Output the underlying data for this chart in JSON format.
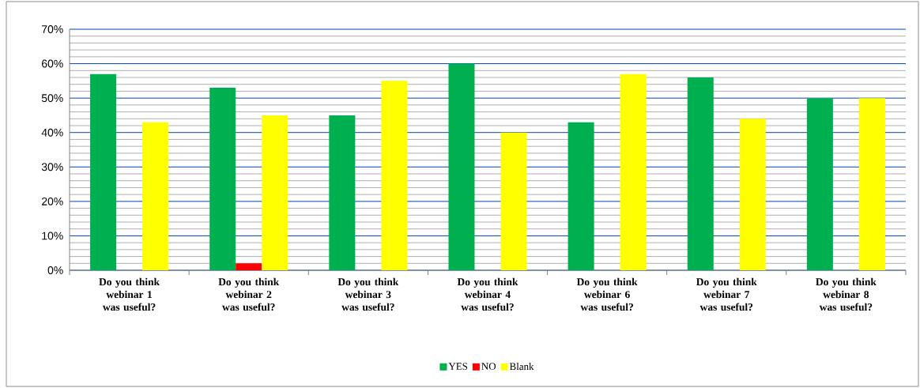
{
  "chart_data": {
    "type": "bar",
    "categories": [
      "Do you think webinar 1 was useful?",
      "Do you think webinar 2 was useful?",
      "Do you think webinar 3 was useful?",
      "Do you think webinar 4 was useful?",
      "Do you think webinar 6 was useful?",
      "Do you think webinar 7 was useful?",
      "Do you think webinar 8 was useful?"
    ],
    "series": [
      {
        "name": "YES",
        "color": "#00b050",
        "values": [
          57,
          53,
          45,
          60,
          43,
          56,
          50
        ]
      },
      {
        "name": "NO",
        "color": "#ff0000",
        "values": [
          0,
          2,
          0,
          0,
          0,
          0,
          0
        ]
      },
      {
        "name": "Blank",
        "color": "#ffff00",
        "values": [
          43,
          45,
          55,
          40,
          57,
          44,
          50
        ]
      }
    ],
    "ylim": [
      0,
      70
    ],
    "yticks": [
      {
        "value": 0,
        "label": "0%"
      },
      {
        "value": 10,
        "label": "10%"
      },
      {
        "value": 20,
        "label": "20%"
      },
      {
        "value": 30,
        "label": "30%"
      },
      {
        "value": 40,
        "label": "40%"
      },
      {
        "value": 50,
        "label": "50%"
      },
      {
        "value": 60,
        "label": "60%"
      },
      {
        "value": 70,
        "label": "70%"
      }
    ],
    "grid": "y",
    "legend": "bottom"
  }
}
